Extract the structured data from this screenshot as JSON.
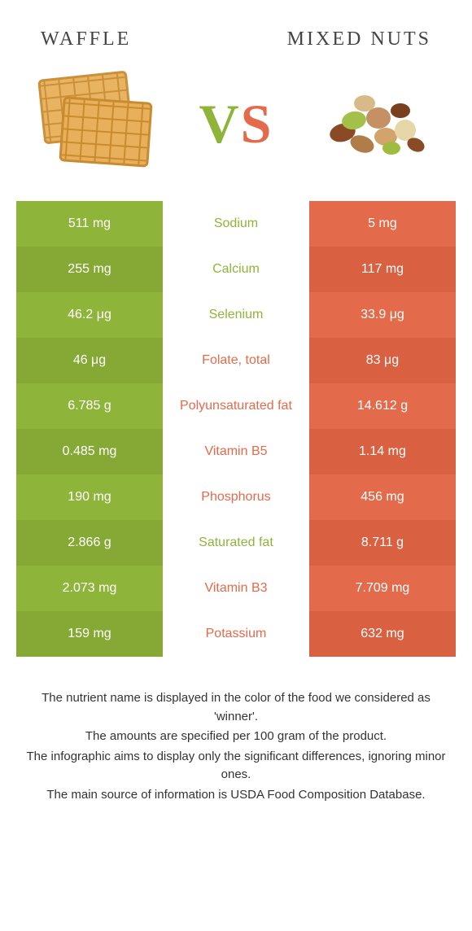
{
  "colors": {
    "left": "#8fb43a",
    "right": "#e36a4a",
    "left_alt": "#86a935",
    "right_alt": "#d96142",
    "background": "#ffffff",
    "text": "#333333"
  },
  "left_food": "WAFFLE",
  "right_food": "MIXED NUTS",
  "vs": {
    "v": "V",
    "s": "S"
  },
  "rows": [
    {
      "left": "511 mg",
      "label": "Sodium",
      "right": "5 mg",
      "winner": "left"
    },
    {
      "left": "255 mg",
      "label": "Calcium",
      "right": "117 mg",
      "winner": "left"
    },
    {
      "left": "46.2 μg",
      "label": "Selenium",
      "right": "33.9 μg",
      "winner": "left"
    },
    {
      "left": "46 μg",
      "label": "Folate, total",
      "right": "83 μg",
      "winner": "right"
    },
    {
      "left": "6.785 g",
      "label": "Polyunsaturated fat",
      "right": "14.612 g",
      "winner": "right"
    },
    {
      "left": "0.485 mg",
      "label": "Vitamin B5",
      "right": "1.14 mg",
      "winner": "right"
    },
    {
      "left": "190 mg",
      "label": "Phosphorus",
      "right": "456 mg",
      "winner": "right"
    },
    {
      "left": "2.866 g",
      "label": "Saturated fat",
      "right": "8.711 g",
      "winner": "left"
    },
    {
      "left": "2.073 mg",
      "label": "Vitamin B3",
      "right": "7.709 mg",
      "winner": "right"
    },
    {
      "left": "159 mg",
      "label": "Potassium",
      "right": "632 mg",
      "winner": "right"
    }
  ],
  "footer": [
    "The nutrient name is displayed in the color of the food we considered as 'winner'.",
    "The amounts are specified per 100 gram of the product.",
    "The infographic aims to display only the significant differences, ignoring minor ones.",
    "The main source of information is USDA Food Composition Database."
  ]
}
